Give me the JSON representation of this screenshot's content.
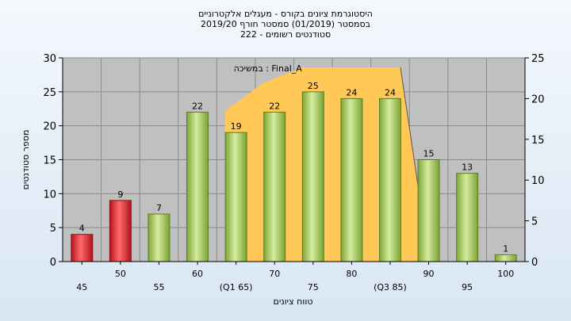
{
  "chart_data": {
    "type": "bar",
    "title_lines": [
      "היסטוגרמת ציונים בקורס - מעגלים אלקטרוניים",
      "בסמסטר  (01/2019)  סמסטר חורף 2019/20",
      "סטודנטים רשומים - 222"
    ],
    "xlabel": "טווח ציונים",
    "ylabel": "מספר סטודנטים",
    "categories": [
      "45",
      "50",
      "55",
      "60",
      "(Q1 65)",
      "70",
      "75",
      "80",
      "(Q3 85)",
      "90",
      "95",
      "100"
    ],
    "values": [
      4,
      9,
      7,
      22,
      19,
      22,
      25,
      24,
      24,
      15,
      13,
      1
    ],
    "bar_colors": [
      "red",
      "red",
      "green",
      "green",
      "green",
      "green",
      "green",
      "green",
      "green",
      "green",
      "green",
      "green"
    ],
    "ylim": [
      0,
      30
    ],
    "yticks": [
      0,
      5,
      10,
      15,
      20,
      25,
      30
    ],
    "y2lim": [
      0,
      25
    ],
    "y2ticks": [
      0,
      5,
      10,
      15,
      20,
      25
    ],
    "grid": true,
    "overlay_label": "במשיכה : Final_A",
    "colors": {
      "plot_bg": "#c0c0c0",
      "overlay": "#ffc857",
      "bar_red": "#e0262b",
      "bar_green": "#9cc44c"
    }
  }
}
